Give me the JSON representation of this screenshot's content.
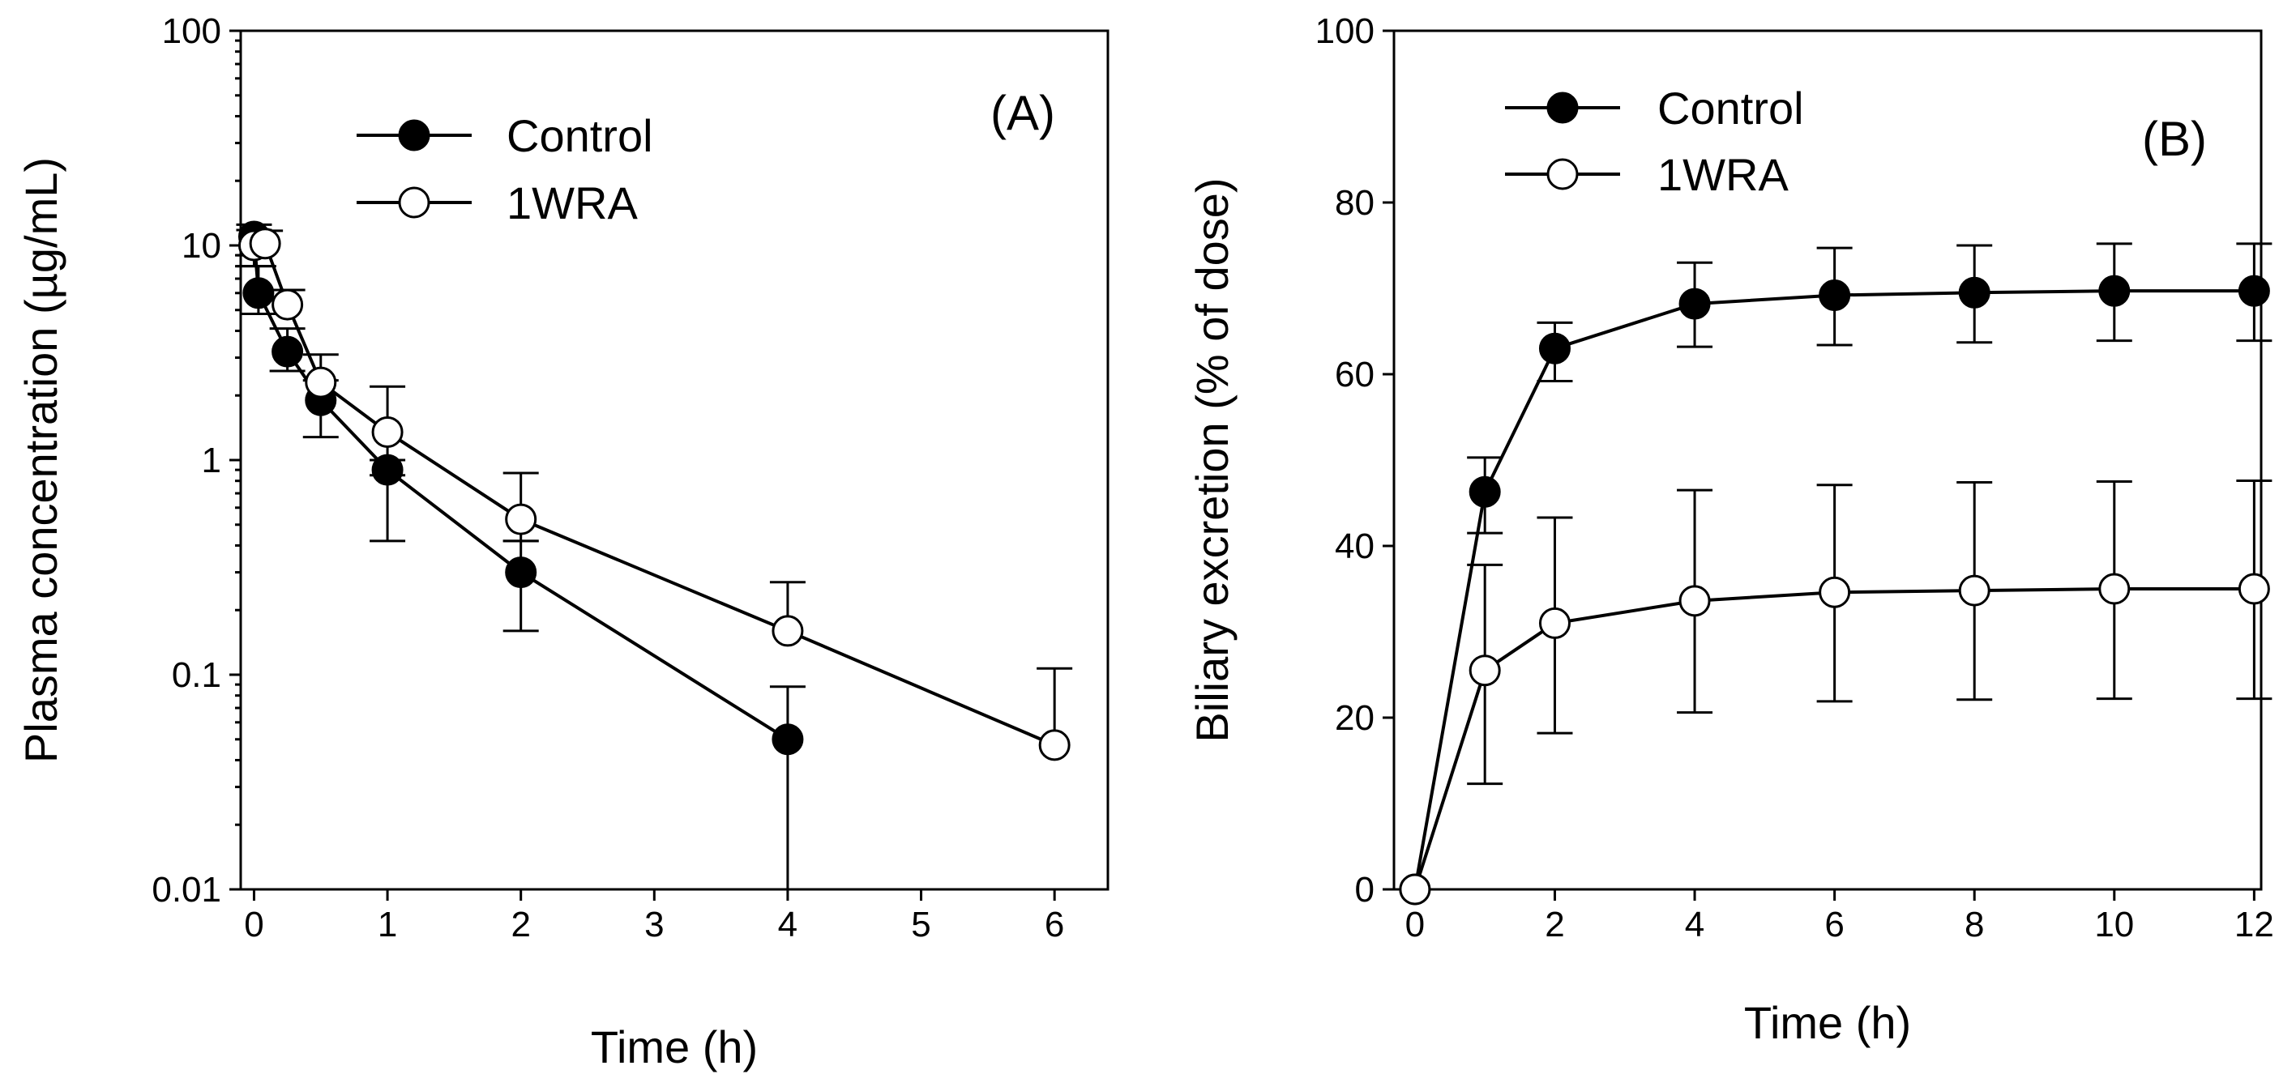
{
  "chart_data": [
    {
      "type": "line",
      "panel_label": "(A)",
      "xlabel": "Time (h)",
      "ylabel": "Plasma concentration (µg/mL)",
      "yscale": "log",
      "xlim": [
        -0.1,
        6.4
      ],
      "ylim": [
        0.01,
        100
      ],
      "xticks": [
        0,
        1,
        2,
        3,
        4,
        5,
        6
      ],
      "xtick_labels": [
        "0",
        "1",
        "2",
        "3",
        "4",
        "5",
        "6"
      ],
      "yticks": [
        0.01,
        0.1,
        1,
        10,
        100
      ],
      "ytick_labels": [
        "0.01",
        "0.1",
        "1",
        "10",
        "100"
      ],
      "legend_position": "top-left",
      "series": [
        {
          "name": "Control",
          "marker": "filled-circle",
          "x": [
            0,
            0.033,
            0.25,
            0.5,
            1,
            2,
            4
          ],
          "y": [
            11.0,
            6.0,
            3.2,
            1.9,
            0.9,
            0.3,
            0.05
          ],
          "err_upper": [
            1.5,
            2.0,
            0.9,
            0.45,
            0.1,
            0.12,
            0.038
          ],
          "err_lower": [
            2.0,
            1.2,
            0.6,
            0.62,
            0.48,
            0.14,
            0.048
          ]
        },
        {
          "name": "1WRA",
          "marker": "open-circle",
          "x": [
            0,
            0.083,
            0.25,
            0.5,
            1,
            2,
            4,
            6
          ],
          "y": [
            10.0,
            10.2,
            5.3,
            2.3,
            1.35,
            0.53,
            0.16,
            0.047
          ],
          "err_upper": [
            1.8,
            1.5,
            0.9,
            0.8,
            0.85,
            0.34,
            0.11,
            0.06
          ],
          "err_lower": [
            2.0,
            0,
            0,
            0,
            0.5,
            0.11,
            0,
            0
          ]
        }
      ]
    },
    {
      "type": "line",
      "panel_label": "(B)",
      "xlabel": "Time (h)",
      "ylabel": "Biliary excretion (% of dose)",
      "yscale": "linear",
      "xlim": [
        -0.3,
        12.1
      ],
      "ylim": [
        0,
        100
      ],
      "xticks": [
        0,
        2,
        4,
        6,
        8,
        10,
        12
      ],
      "xtick_labels": [
        "0",
        "2",
        "4",
        "6",
        "8",
        "10",
        "12"
      ],
      "yticks": [
        0,
        20,
        40,
        60,
        80,
        100
      ],
      "ytick_labels": [
        "0",
        "20",
        "40",
        "60",
        "80",
        "100"
      ],
      "legend_position": "top-left",
      "series": [
        {
          "name": "Control",
          "marker": "filled-circle",
          "x": [
            0,
            1,
            2,
            4,
            6,
            8,
            10,
            12
          ],
          "y": [
            0,
            46.3,
            63.0,
            68.2,
            69.2,
            69.5,
            69.7,
            69.7
          ],
          "err_upper": [
            0,
            4.0,
            3.0,
            4.8,
            5.5,
            5.5,
            5.5,
            5.5
          ],
          "err_lower": [
            0,
            4.8,
            3.8,
            5.0,
            5.8,
            5.8,
            5.8,
            5.8
          ]
        },
        {
          "name": "1WRA",
          "marker": "open-circle",
          "x": [
            0,
            1,
            2,
            4,
            6,
            8,
            10,
            12
          ],
          "y": [
            0,
            25.5,
            31.0,
            33.6,
            34.6,
            34.8,
            35.0,
            35.0
          ],
          "err_upper": [
            0,
            12.3,
            12.3,
            12.9,
            12.5,
            12.6,
            12.5,
            12.6
          ],
          "err_lower": [
            0,
            13.2,
            12.8,
            13.0,
            12.7,
            12.7,
            12.8,
            12.8
          ]
        }
      ]
    }
  ]
}
